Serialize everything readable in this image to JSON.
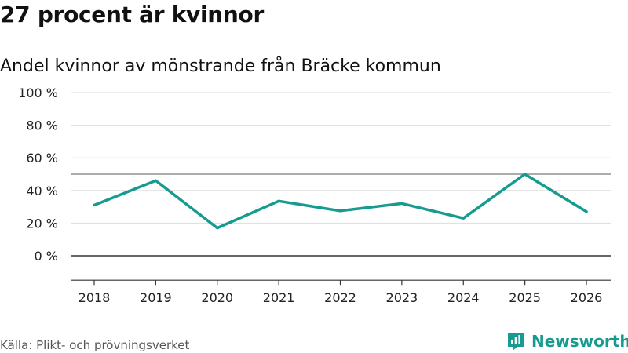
{
  "header": {
    "title": "27 procent är kvinnor",
    "subtitle": "Andel kvinnor av mönstrande från Bräcke kommun"
  },
  "footer": {
    "source": "Källa: Plikt- och prövningsverket",
    "brand": "Newsworthy",
    "brand_color": "#159b8f"
  },
  "chart_data": {
    "type": "line",
    "title": "27 procent är kvinnor",
    "subtitle": "Andel kvinnor av mönstrande från Bräcke kommun",
    "xlabel": "",
    "ylabel": "",
    "categories": [
      "2018",
      "2019",
      "2020",
      "2021",
      "2022",
      "2023",
      "2024",
      "2025",
      "2026"
    ],
    "series": [
      {
        "name": "Andel kvinnor",
        "values": [
          31,
          46,
          17,
          33.5,
          27.5,
          32,
          23,
          50,
          27
        ],
        "color": "#159b8f"
      }
    ],
    "ylim": [
      -15,
      100
    ],
    "yticks": [
      0,
      20,
      40,
      60,
      80,
      100
    ],
    "ytick_labels": [
      "0 %",
      "20 %",
      "40 %",
      "60 %",
      "80 %",
      "100 %"
    ],
    "reference_line": 50,
    "grid": true
  }
}
